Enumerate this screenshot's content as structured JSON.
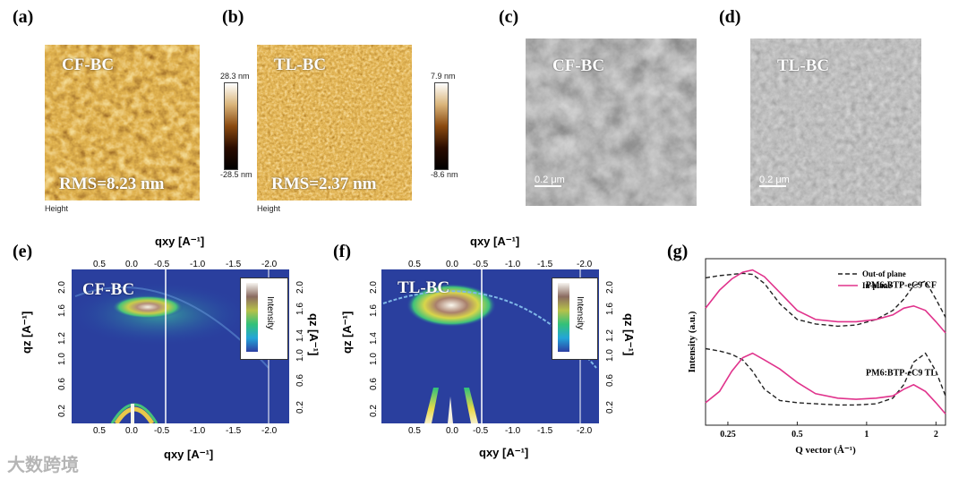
{
  "panels": {
    "a": {
      "label": "(a)",
      "sample": "CF-BC",
      "rms": "RMS=8.23 nm",
      "height_label": "Height",
      "cbar_max": "28.3 nm",
      "cbar_min": "-28.5 nm"
    },
    "b": {
      "label": "(b)",
      "sample": "TL-BC",
      "rms": "RMS=2.37 nm",
      "height_label": "Height",
      "cbar_max": "7.9 nm",
      "cbar_min": "-8.6 nm"
    },
    "c": {
      "label": "(c)",
      "sample": "CF-BC",
      "scale": "0.2 μm"
    },
    "d": {
      "label": "(d)",
      "sample": "TL-BC",
      "scale": "0.2 μm"
    },
    "e": {
      "label": "(e)",
      "sample": "CF-BC",
      "intensity": "Intensity",
      "top_axis_title": "qxy [A⁻¹]",
      "bottom_axis_title": "qxy [A⁻¹]",
      "left_axis_title": "qz [A⁻¹]",
      "right_axis_title": "qz [A⁻¹]",
      "top_ticks": [
        "0.5",
        "0.0",
        "-0.5",
        "-1.0",
        "-1.5",
        "-2.0"
      ],
      "bottom_ticks": [
        "0.5",
        "0.0",
        "-0.5",
        "-1.0",
        "-1.5",
        "-2.0"
      ],
      "left_ticks": [
        "2.0",
        "1.6",
        "1.2",
        "1.0",
        "0.6",
        "0.2"
      ],
      "right_ticks": [
        "2.0",
        "1.6",
        "1.4",
        "1.0",
        "0.6",
        "0.2"
      ]
    },
    "f": {
      "label": "(f)",
      "sample": "TL-BC",
      "intensity": "Intensity",
      "top_axis_title": "qxy [A⁻¹]",
      "bottom_axis_title": "qxy [A⁻¹]",
      "left_axis_title": "qz [A⁻¹]",
      "right_axis_title": "qz [A⁻¹]",
      "top_ticks": [
        "0.5",
        "0.0",
        "-0.5",
        "-1.0",
        "-1.5",
        "-2.0"
      ],
      "bottom_ticks": [
        "0.5",
        "0.0",
        "-0.5",
        "-1.0",
        "-1.5",
        "-2.0"
      ],
      "left_ticks": [
        "2.0",
        "1.6",
        "1.4",
        "1.0",
        "0.6",
        "0.2"
      ],
      "right_ticks": [
        "2.0",
        "1.6",
        "1.2",
        "1.0",
        "0.6",
        "0.2"
      ]
    },
    "g": {
      "label": "(g)"
    }
  },
  "watermark": "大数跨境",
  "chart_data": {
    "type": "line",
    "title": "",
    "xlabel": "Q vector (Å⁻¹)",
    "ylabel": "Intensity (a.u.)",
    "xscale": "log",
    "xlim": [
      0.2,
      2.2
    ],
    "x_ticks": [
      "0.25",
      "0.5",
      "1",
      "2"
    ],
    "x_tick_values": [
      0.25,
      0.5,
      1,
      2
    ],
    "legend": [
      {
        "label": "Out-of plane",
        "style": "dashed",
        "color": "#222222"
      },
      {
        "label": "In-plane",
        "style": "solid",
        "color": "#e0338c"
      }
    ],
    "groups": [
      {
        "name": "PM6:BTP-eC9 CF",
        "x": [
          0.2,
          0.23,
          0.26,
          0.29,
          0.32,
          0.36,
          0.42,
          0.5,
          0.6,
          0.75,
          0.9,
          1.1,
          1.3,
          1.45,
          1.6,
          1.8,
          2.0,
          2.2
        ],
        "out_of_plane": [
          8.35,
          8.45,
          8.5,
          8.55,
          8.5,
          8.1,
          7.2,
          6.5,
          6.3,
          6.2,
          6.25,
          6.5,
          6.9,
          7.4,
          8.0,
          8.2,
          7.4,
          6.6
        ],
        "in_plane": [
          7.0,
          7.8,
          8.3,
          8.6,
          8.7,
          8.4,
          7.7,
          6.9,
          6.5,
          6.4,
          6.4,
          6.5,
          6.7,
          7.0,
          7.1,
          6.9,
          6.4,
          5.9
        ]
      },
      {
        "name": "PM6:BTP-eC9 TL",
        "x": [
          0.2,
          0.23,
          0.26,
          0.29,
          0.32,
          0.36,
          0.42,
          0.5,
          0.6,
          0.75,
          0.9,
          1.1,
          1.3,
          1.45,
          1.6,
          1.8,
          2.0,
          2.2
        ],
        "out_of_plane": [
          5.2,
          5.1,
          4.95,
          4.7,
          4.2,
          3.4,
          2.9,
          2.8,
          2.75,
          2.7,
          2.7,
          2.75,
          3.0,
          3.6,
          4.6,
          5.0,
          4.2,
          3.1
        ],
        "in_plane": [
          2.8,
          3.3,
          4.2,
          4.8,
          5.0,
          4.7,
          4.3,
          3.7,
          3.2,
          3.0,
          2.95,
          3.0,
          3.1,
          3.4,
          3.6,
          3.3,
          2.8,
          2.3
        ]
      }
    ]
  }
}
